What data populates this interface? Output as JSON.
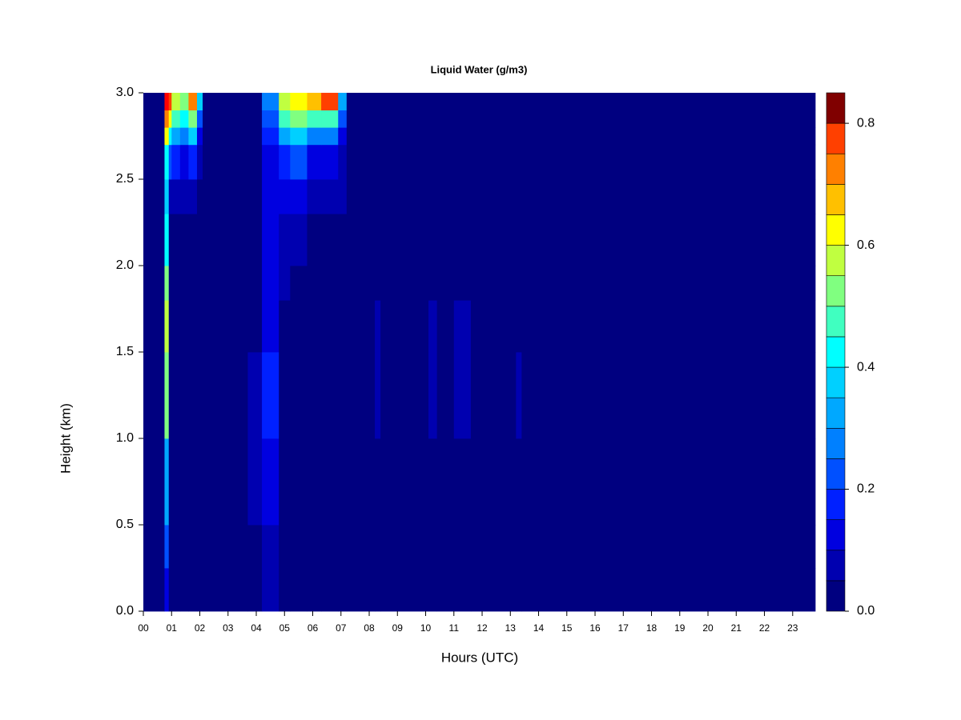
{
  "chart_data": {
    "type": "heatmap",
    "title": "Liquid Water (g/m3)",
    "x_label": "Hours (UTC)",
    "y_label": "Height (km)",
    "xlim": [
      0,
      23.8
    ],
    "ylim": [
      0,
      3
    ],
    "xticks": [
      {
        "value": 0,
        "label": "00"
      },
      {
        "value": 1,
        "label": "01"
      },
      {
        "value": 2,
        "label": "02"
      },
      {
        "value": 3,
        "label": "03"
      },
      {
        "value": 4,
        "label": "04"
      },
      {
        "value": 5,
        "label": "05"
      },
      {
        "value": 6,
        "label": "06"
      },
      {
        "value": 7,
        "label": "07"
      },
      {
        "value": 8,
        "label": "08"
      },
      {
        "value": 9,
        "label": "09"
      },
      {
        "value": 10,
        "label": "10"
      },
      {
        "value": 11,
        "label": "11"
      },
      {
        "value": 12,
        "label": "12"
      },
      {
        "value": 13,
        "label": "13"
      },
      {
        "value": 14,
        "label": "14"
      },
      {
        "value": 15,
        "label": "15"
      },
      {
        "value": 16,
        "label": "16"
      },
      {
        "value": 17,
        "label": "17"
      },
      {
        "value": 18,
        "label": "18"
      },
      {
        "value": 19,
        "label": "19"
      },
      {
        "value": 20,
        "label": "20"
      },
      {
        "value": 21,
        "label": "21"
      },
      {
        "value": 22,
        "label": "22"
      },
      {
        "value": 23,
        "label": "23"
      }
    ],
    "yticks": [
      {
        "value": 0,
        "label": "0.0"
      },
      0.5,
      {
        "value": 1,
        "label": "1.0"
      },
      1.5,
      {
        "value": 2,
        "label": "2.0"
      },
      2.5,
      {
        "value": 3,
        "label": "3.0"
      }
    ],
    "x_edges": [
      0,
      0.75,
      0.9,
      1.0,
      1.3,
      1.6,
      1.9,
      2.1,
      3.7,
      4.2,
      4.8,
      5.2,
      5.8,
      6.3,
      6.9,
      7.2,
      8.2,
      8.4,
      10.1,
      10.4,
      11.0,
      11.6,
      13.2,
      13.4,
      23.8
    ],
    "y_edges": [
      0,
      0.25,
      0.5,
      1.0,
      1.5,
      1.8,
      2.0,
      2.3,
      2.5,
      2.7,
      2.8,
      2.9,
      3.0
    ],
    "z": [
      [
        0,
        0.1,
        0,
        0,
        0,
        0,
        0,
        0,
        0,
        0.05,
        0,
        0,
        0,
        0,
        0,
        0,
        0,
        0,
        0,
        0,
        0,
        0,
        0,
        0
      ],
      [
        0,
        0.2,
        0,
        0,
        0,
        0,
        0,
        0,
        0,
        0.05,
        0,
        0,
        0,
        0,
        0,
        0,
        0,
        0,
        0,
        0,
        0,
        0,
        0,
        0
      ],
      [
        0,
        0.3,
        0,
        0,
        0,
        0,
        0,
        0,
        0.05,
        0.1,
        0,
        0,
        0,
        0,
        0,
        0,
        0,
        0,
        0,
        0,
        0,
        0,
        0,
        0
      ],
      [
        0,
        0.5,
        0,
        0,
        0,
        0,
        0,
        0,
        0.05,
        0.15,
        0,
        0,
        0,
        0,
        0,
        0,
        0.05,
        0,
        0.05,
        0,
        0.05,
        0,
        0.05,
        0
      ],
      [
        0,
        0.55,
        0,
        0,
        0,
        0,
        0,
        0,
        0,
        0.1,
        0,
        0,
        0,
        0,
        0,
        0,
        0.05,
        0,
        0.05,
        0,
        0.05,
        0,
        0,
        0
      ],
      [
        0,
        0.5,
        0,
        0,
        0,
        0,
        0,
        0,
        0,
        0.1,
        0.05,
        0,
        0,
        0,
        0,
        0,
        0,
        0,
        0,
        0,
        0,
        0,
        0,
        0
      ],
      [
        0,
        0.4,
        0,
        0,
        0,
        0,
        0,
        0,
        0,
        0.1,
        0.05,
        0.05,
        0,
        0,
        0,
        0,
        0,
        0,
        0,
        0,
        0,
        0,
        0,
        0
      ],
      [
        0,
        0.35,
        0.05,
        0.05,
        0.05,
        0.05,
        0,
        0,
        0,
        0.1,
        0.1,
        0.1,
        0.05,
        0.05,
        0.05,
        0,
        0,
        0,
        0,
        0,
        0,
        0,
        0,
        0
      ],
      [
        0,
        0.4,
        0.2,
        0.15,
        0.1,
        0.15,
        0.05,
        0,
        0,
        0.1,
        0.15,
        0.2,
        0.1,
        0.1,
        0.05,
        0,
        0,
        0,
        0,
        0,
        0,
        0,
        0,
        0
      ],
      [
        0,
        0.6,
        0.4,
        0.3,
        0.25,
        0.35,
        0.1,
        0,
        0,
        0.15,
        0.3,
        0.35,
        0.25,
        0.25,
        0.1,
        0,
        0,
        0,
        0,
        0,
        0,
        0,
        0,
        0
      ],
      [
        0,
        0.7,
        0.6,
        0.45,
        0.4,
        0.5,
        0.2,
        0,
        0,
        0.2,
        0.45,
        0.5,
        0.45,
        0.45,
        0.2,
        0,
        0,
        0,
        0,
        0,
        0,
        0,
        0,
        0
      ],
      [
        0,
        0.8,
        0.75,
        0.55,
        0.5,
        0.7,
        0.35,
        0,
        0,
        0.25,
        0.55,
        0.6,
        0.65,
        0.75,
        0.3,
        0,
        0,
        0,
        0,
        0,
        0,
        0,
        0,
        0
      ]
    ],
    "levels": [
      0,
      0.05,
      0.1,
      0.15,
      0.2,
      0.25,
      0.3,
      0.35,
      0.4,
      0.45,
      0.5,
      0.55,
      0.6,
      0.65,
      0.7,
      0.75,
      0.8,
      0.85
    ],
    "colors": [
      "#000080",
      "#0000B0",
      "#0000E0",
      "#0020FF",
      "#0050FF",
      "#0080FF",
      "#00A8FF",
      "#00D0FF",
      "#00FFFF",
      "#40FFC0",
      "#80FF80",
      "#C0FF40",
      "#FFFF00",
      "#FFC000",
      "#FF8000",
      "#FF4000",
      "#FF0000"
    ],
    "colorbar_top_color": "#800000",
    "colorbar_ticks": [
      {
        "value": 0,
        "label": "0.0"
      },
      0.2,
      0.4,
      0.6,
      0.8
    ]
  }
}
